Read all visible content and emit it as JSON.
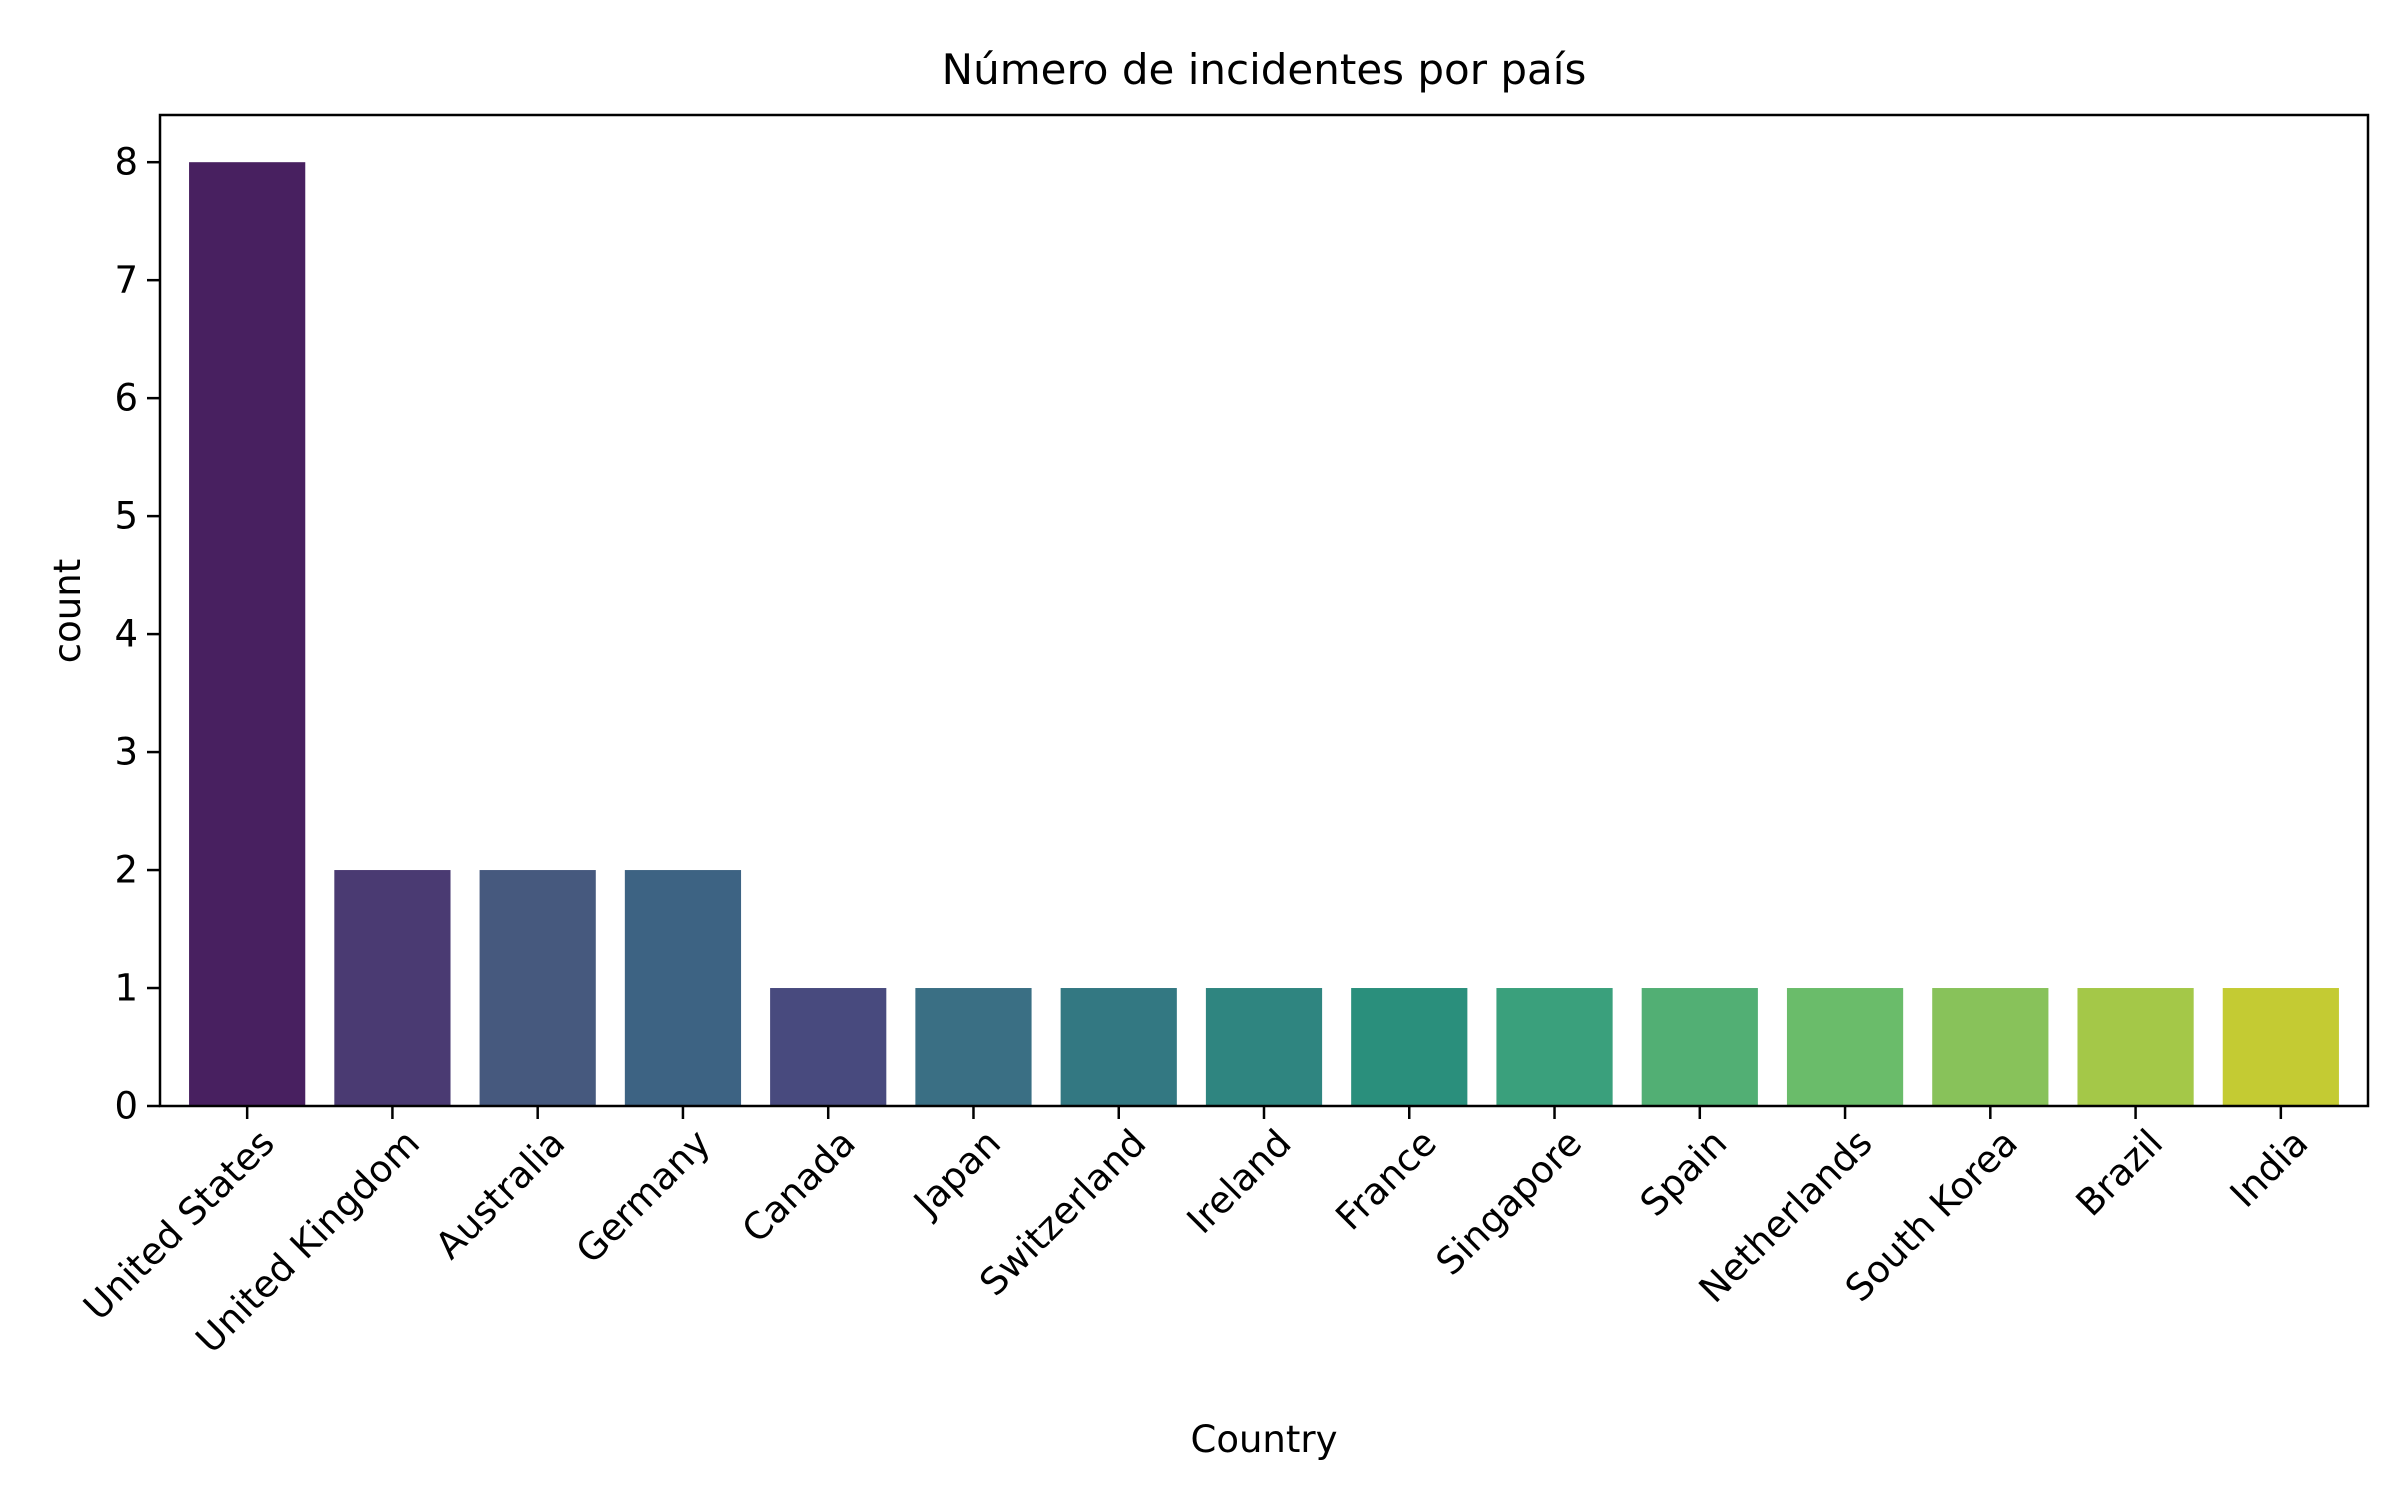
{
  "chart_data": {
    "type": "bar",
    "title": "Número de incidentes por país",
    "xlabel": "Country",
    "ylabel": "count",
    "categories": [
      "United States",
      "United Kingdom",
      "Australia",
      "Germany",
      "Canada",
      "Japan",
      "Switzerland",
      "Ireland",
      "France",
      "Singapore",
      "Spain",
      "Netherlands",
      "South Korea",
      "Brazil",
      "India"
    ],
    "values": [
      8,
      2,
      2,
      2,
      1,
      1,
      1,
      1,
      1,
      1,
      1,
      1,
      1,
      1,
      1
    ],
    "colors": [
      "#482060",
      "#4A3A72",
      "#46597E",
      "#3D6383",
      "#484A7E",
      "#3A6F84",
      "#337882",
      "#2F8580",
      "#2A8F7C",
      "#3AA07C",
      "#52AF74",
      "#6ABC6A",
      "#88C25A",
      "#A4C848",
      "#C4CB33"
    ],
    "yticks": [
      0,
      1,
      2,
      3,
      4,
      5,
      6,
      7,
      8
    ],
    "ylim": [
      0,
      8.4
    ],
    "grid": false,
    "legend": "none"
  }
}
